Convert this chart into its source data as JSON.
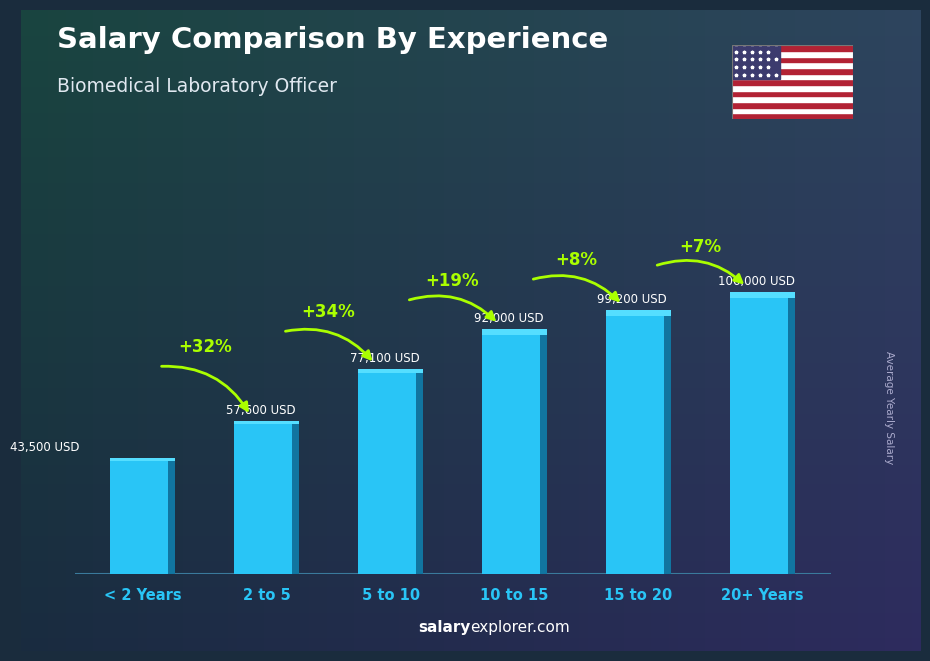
{
  "title": "Salary Comparison By Experience",
  "subtitle": "Biomedical Laboratory Officer",
  "categories": [
    "< 2 Years",
    "2 to 5",
    "5 to 10",
    "10 to 15",
    "15 to 20",
    "20+ Years"
  ],
  "values": [
    43500,
    57600,
    77100,
    92000,
    99200,
    106000
  ],
  "salary_labels": [
    "43,500 USD",
    "57,600 USD",
    "77,100 USD",
    "92,000 USD",
    "99,200 USD",
    "106,000 USD"
  ],
  "pct_labels": [
    "+32%",
    "+34%",
    "+19%",
    "+8%",
    "+7%"
  ],
  "bar_color_face": "#29c5f6",
  "bar_color_side": "#1175a0",
  "bar_color_top": "#55deff",
  "background_color": "#1a2c3d",
  "title_color": "#ffffff",
  "subtitle_color": "#e0e8f0",
  "salary_label_color": "#ffffff",
  "pct_color": "#aaff00",
  "xlabel_color": "#29c5f6",
  "ylabel_text": "Average Yearly Salary",
  "footer_salary": "salary",
  "footer_rest": "explorer.com",
  "ylim": [
    0,
    130000
  ],
  "bar_width": 0.52,
  "arrow_configs": [
    [
      0,
      1,
      "+32%",
      0.6
    ],
    [
      1,
      2,
      "+34%",
      0.7
    ],
    [
      2,
      3,
      "+19%",
      0.79
    ],
    [
      3,
      4,
      "+8%",
      0.85
    ],
    [
      4,
      5,
      "+7%",
      0.89
    ]
  ]
}
